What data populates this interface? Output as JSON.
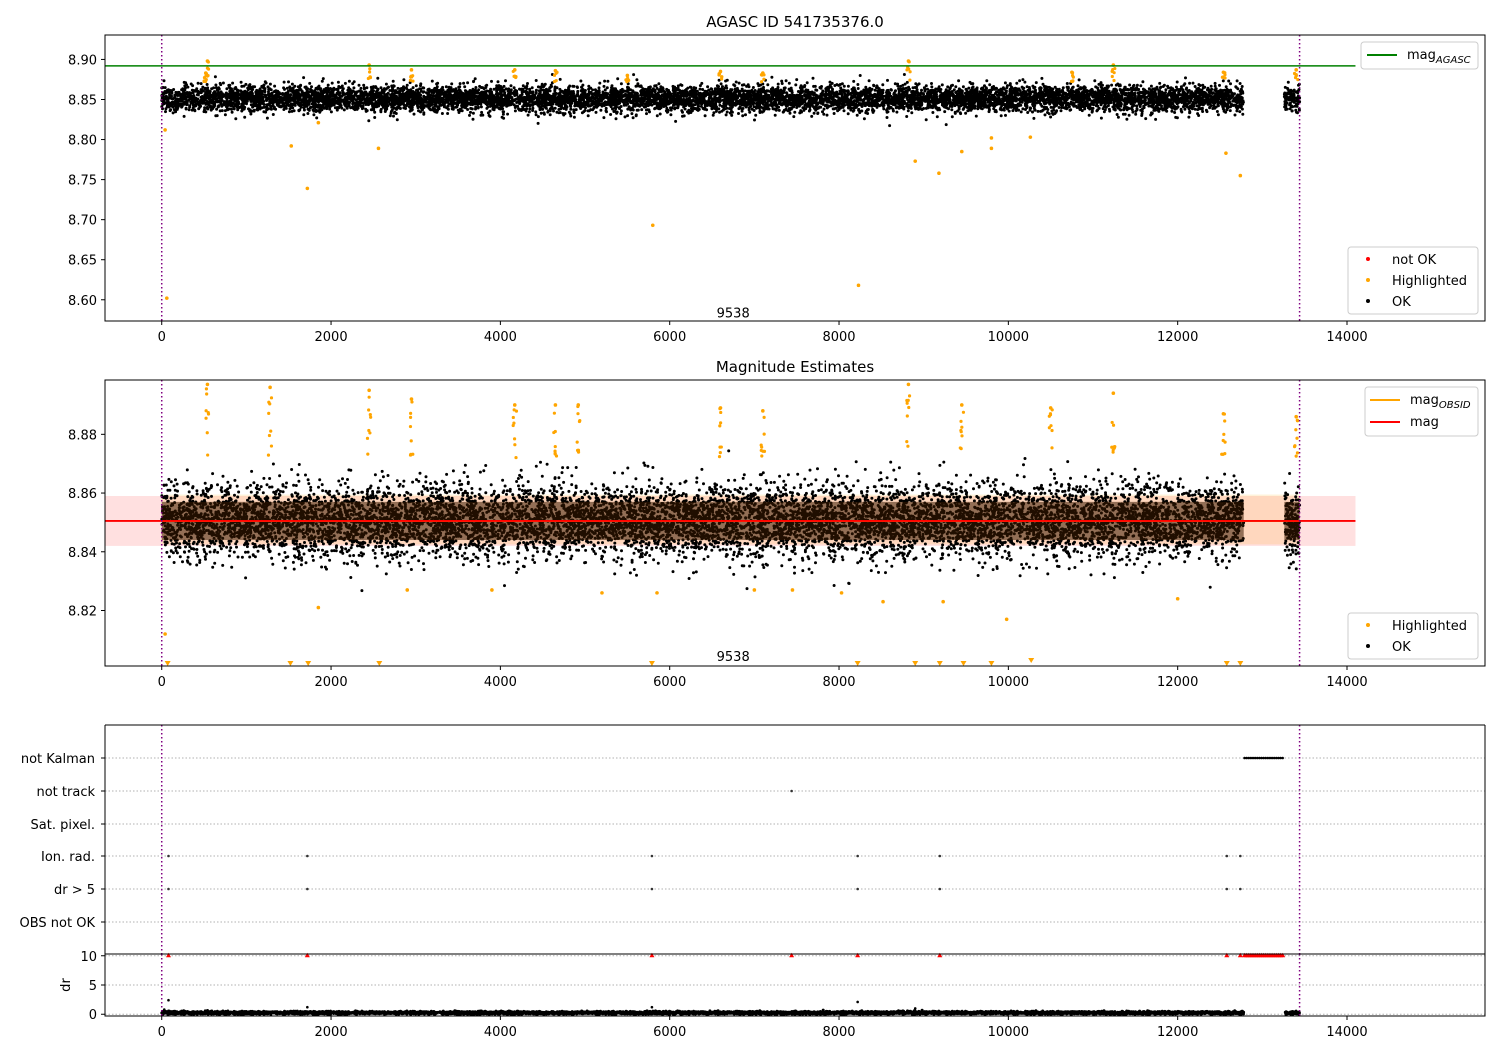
{
  "chart_data": [
    {
      "type": "scatter",
      "title": "AGASC ID 541735376.0",
      "xlabel": "",
      "ylabel": "",
      "xlim": [
        -670,
        15630
      ],
      "ylim": [
        8.5735,
        8.9305
      ],
      "x_ticks": [
        0,
        2000,
        4000,
        6000,
        8000,
        10000,
        12000,
        14000
      ],
      "x_tick_labels": [
        "0",
        "2000",
        "4000",
        "6000",
        "8000",
        "10000",
        "12000",
        "14000"
      ],
      "y_ticks": [
        8.6,
        8.65,
        8.7,
        8.75,
        8.8,
        8.85,
        8.9
      ],
      "y_tick_labels": [
        "8.60",
        "8.65",
        "8.70",
        "8.75",
        "8.80",
        "8.85",
        "8.90"
      ],
      "lines": [
        {
          "name": "mag",
          "subscript": "AGASC",
          "y": 8.892,
          "x_range": [
            -670,
            14100
          ],
          "color": "#008000"
        }
      ],
      "vertical_lines": [
        {
          "x": 0,
          "color": "#800080",
          "style": "dotted"
        },
        {
          "x": 13440,
          "color": "#800080",
          "style": "dotted"
        }
      ],
      "annotations": [
        {
          "text": "9538",
          "x": 6750,
          "y": 8.583
        }
      ],
      "series": [
        {
          "name": "not OK",
          "color": "#ff0000",
          "points": []
        },
        {
          "name": "Highlighted",
          "color": "#ffa500",
          "points": [
            [
              60,
              8.602
            ],
            [
              40,
              8.812
            ],
            [
              540,
              8.898
            ],
            [
              520,
              8.883
            ],
            [
              1530,
              8.792
            ],
            [
              1720,
              8.739
            ],
            [
              1850,
              8.821
            ],
            [
              2560,
              8.789
            ],
            [
              2450,
              8.893
            ],
            [
              2950,
              8.887
            ],
            [
              5800,
              8.693
            ],
            [
              4170,
              8.887
            ],
            [
              6600,
              8.885
            ],
            [
              7100,
              8.883
            ],
            [
              8230,
              8.618
            ],
            [
              8820,
              8.898
            ],
            [
              8900,
              8.773
            ],
            [
              9180,
              8.758
            ],
            [
              9450,
              8.785
            ],
            [
              9800,
              8.802
            ],
            [
              9800,
              8.789
            ],
            [
              10260,
              8.803
            ],
            [
              10750,
              8.884
            ],
            [
              11240,
              8.893
            ],
            [
              12570,
              8.783
            ],
            [
              12740,
              8.755
            ],
            [
              12540,
              8.884
            ],
            [
              13400,
              8.887
            ],
            [
              4650,
              8.886
            ],
            [
              5500,
              8.88
            ]
          ]
        },
        {
          "name": "OK",
          "color": "#000000",
          "band": {
            "center": 8.851,
            "sd": 0.008
          },
          "x_segments": [
            [
              0,
              12780
            ],
            [
              13260,
              13440
            ]
          ]
        }
      ],
      "legends": [
        {
          "position": "upper right",
          "entries": [
            {
              "label": "mag",
              "subscript": "AGASC",
              "marker": "line",
              "color": "#008000"
            }
          ]
        },
        {
          "position": "lower right",
          "entries": [
            {
              "label": "not OK",
              "marker": "dot",
              "color": "#ff0000"
            },
            {
              "label": "Highlighted",
              "marker": "dot",
              "color": "#ffa500"
            },
            {
              "label": "OK",
              "marker": "dot",
              "color": "#000000"
            }
          ]
        }
      ]
    },
    {
      "type": "scatter",
      "title": "Magnitude Estimates",
      "xlabel": "",
      "ylabel": "",
      "xlim": [
        -670,
        15630
      ],
      "ylim": [
        8.8011,
        8.8985
      ],
      "x_ticks": [
        0,
        2000,
        4000,
        6000,
        8000,
        10000,
        12000,
        14000
      ],
      "x_tick_labels": [
        "0",
        "2000",
        "4000",
        "6000",
        "8000",
        "10000",
        "12000",
        "14000"
      ],
      "y_ticks": [
        8.82,
        8.84,
        8.86,
        8.88
      ],
      "y_tick_labels": [
        "8.82",
        "8.84",
        "8.86",
        "8.88"
      ],
      "lines": [
        {
          "name": "mag",
          "subscript": "OBSID",
          "y": 8.8505,
          "x_range": [
            0,
            13440
          ],
          "color": "#ffa500"
        },
        {
          "name": "mag",
          "y": 8.8505,
          "x_range": [
            -670,
            14100
          ],
          "color": "#ff0000"
        }
      ],
      "bands": [
        {
          "y_range": [
            8.842,
            8.859
          ],
          "x_range": [
            -670,
            14100
          ],
          "color": "#ff0000",
          "opacity": 0.12
        },
        {
          "y_range": [
            8.8425,
            8.8595
          ],
          "x_range": [
            0,
            13440
          ],
          "color": "#ffa500",
          "opacity": 0.15
        }
      ],
      "vertical_lines": [
        {
          "x": 0,
          "color": "#800080",
          "style": "dotted"
        },
        {
          "x": 13440,
          "color": "#800080",
          "style": "dotted"
        }
      ],
      "annotations": [
        {
          "text": "9538",
          "x": 6750,
          "y": 8.8042
        }
      ],
      "series": [
        {
          "name": "Highlighted",
          "color": "#ffa500",
          "points": [
            [
              40,
              8.812
            ],
            [
              540,
              8.897
            ],
            [
              1280,
              8.896
            ],
            [
              2450,
              8.895
            ],
            [
              2950,
              8.892
            ],
            [
              4170,
              8.89
            ],
            [
              4650,
              8.89
            ],
            [
              4920,
              8.89
            ],
            [
              6600,
              8.889
            ],
            [
              7100,
              8.888
            ],
            [
              8820,
              8.897
            ],
            [
              9450,
              8.89
            ],
            [
              10500,
              8.889
            ],
            [
              11240,
              8.894
            ],
            [
              12540,
              8.887
            ],
            [
              13400,
              8.886
            ],
            [
              1850,
              8.821
            ],
            [
              2900,
              8.827
            ],
            [
              3900,
              8.827
            ],
            [
              5200,
              8.826
            ],
            [
              5850,
              8.826
            ],
            [
              7450,
              8.827
            ],
            [
              8030,
              8.826
            ],
            [
              8520,
              8.823
            ],
            [
              9230,
              8.823
            ],
            [
              9980,
              8.817
            ],
            [
              12000,
              8.824
            ],
            [
              7000,
              8.827
            ]
          ]
        },
        {
          "name": "Highlighted (out of range)",
          "color": "#ffa500",
          "marker": "down-triangle",
          "points": [
            [
              70,
              8.8018
            ],
            [
              1520,
              8.8018
            ],
            [
              1730,
              8.8018
            ],
            [
              2570,
              8.8018
            ],
            [
              5790,
              8.8018
            ],
            [
              8220,
              8.8018
            ],
            [
              8900,
              8.8018
            ],
            [
              9190,
              8.8018
            ],
            [
              9470,
              8.8018
            ],
            [
              9800,
              8.8018
            ],
            [
              10270,
              8.8028
            ],
            [
              12580,
              8.8018
            ],
            [
              12740,
              8.8018
            ]
          ]
        },
        {
          "name": "OK",
          "color": "#000000",
          "band": {
            "center": 8.8505,
            "sd": 0.0062
          },
          "x_segments": [
            [
              0,
              12780
            ],
            [
              13260,
              13440
            ]
          ]
        }
      ],
      "legends": [
        {
          "position": "upper right",
          "entries": [
            {
              "label": "mag",
              "subscript": "OBSID",
              "marker": "line",
              "color": "#ffa500"
            },
            {
              "label": "mag",
              "subscript": "",
              "marker": "line",
              "color": "#ff0000"
            }
          ]
        },
        {
          "position": "lower right",
          "entries": [
            {
              "label": "Highlighted",
              "marker": "dot",
              "color": "#ffa500"
            },
            {
              "label": "OK",
              "marker": "dot",
              "color": "#000000"
            }
          ]
        }
      ]
    },
    {
      "type": "scatter",
      "title": "",
      "xlabel": "",
      "ylabel": "",
      "xlim": [
        -670,
        15630
      ],
      "categories": [
        "not Kalman",
        "not track",
        "Sat. pixel.",
        "Ion. rad.",
        "dr > 5",
        "OBS not OK"
      ],
      "flags": {
        "not Kalman": {
          "x_range": [
            12790,
            13250
          ]
        },
        "not track": {
          "points": [
            7440
          ]
        },
        "Sat. pixel.": {
          "points": []
        },
        "Ion. rad.": {
          "points": [
            80,
            1720,
            5790,
            8220,
            9190,
            12580,
            12740
          ]
        },
        "dr > 5": {
          "points": [
            80,
            1720,
            5790,
            8220,
            9190,
            12580,
            12740
          ]
        },
        "OBS not OK": {
          "points": []
        }
      },
      "vertical_lines": [
        {
          "x": 0,
          "color": "#800080",
          "style": "dotted"
        },
        {
          "x": 13440,
          "color": "#800080",
          "style": "dotted"
        }
      ]
    },
    {
      "type": "scatter",
      "title": "",
      "xlabel": "",
      "ylabel": "dr",
      "xlim": [
        -670,
        15630
      ],
      "ylim": [
        -0.3,
        10.3
      ],
      "y_ticks": [
        0,
        5,
        10
      ],
      "y_tick_labels": [
        "0",
        "5",
        "10"
      ],
      "x_ticks": [
        0,
        2000,
        4000,
        6000,
        8000,
        10000,
        12000,
        14000
      ],
      "x_tick_labels": [
        "0",
        "2000",
        "4000",
        "6000",
        "8000",
        "10000",
        "12000",
        "14000"
      ],
      "series": [
        {
          "name": "dr",
          "color": "#000000",
          "band": {
            "center": 0.25,
            "sd": 0.12
          },
          "x_segments": [
            [
              0,
              12780
            ],
            [
              13260,
              13440
            ]
          ],
          "points": [
            [
              80,
              2.4
            ],
            [
              1720,
              1.2
            ],
            [
              5790,
              1.2
            ],
            [
              8220,
              2.1
            ],
            [
              8900,
              1.0
            ],
            [
              30,
              0.8
            ]
          ]
        },
        {
          "name": "dr clipped",
          "color": "#ff0000",
          "marker": "up-triangle",
          "points": [
            [
              80,
              10
            ],
            [
              1720,
              10
            ],
            [
              5790,
              10
            ],
            [
              7440,
              10
            ],
            [
              8220,
              10
            ],
            [
              9190,
              10
            ],
            [
              12580,
              10
            ],
            [
              12740,
              10
            ]
          ],
          "x_range_filled": [
            12790,
            13250
          ]
        }
      ],
      "vertical_lines": [
        {
          "x": 0,
          "color": "#800080",
          "style": "dotted"
        },
        {
          "x": 13440,
          "color": "#800080",
          "style": "dotted"
        }
      ]
    }
  ]
}
